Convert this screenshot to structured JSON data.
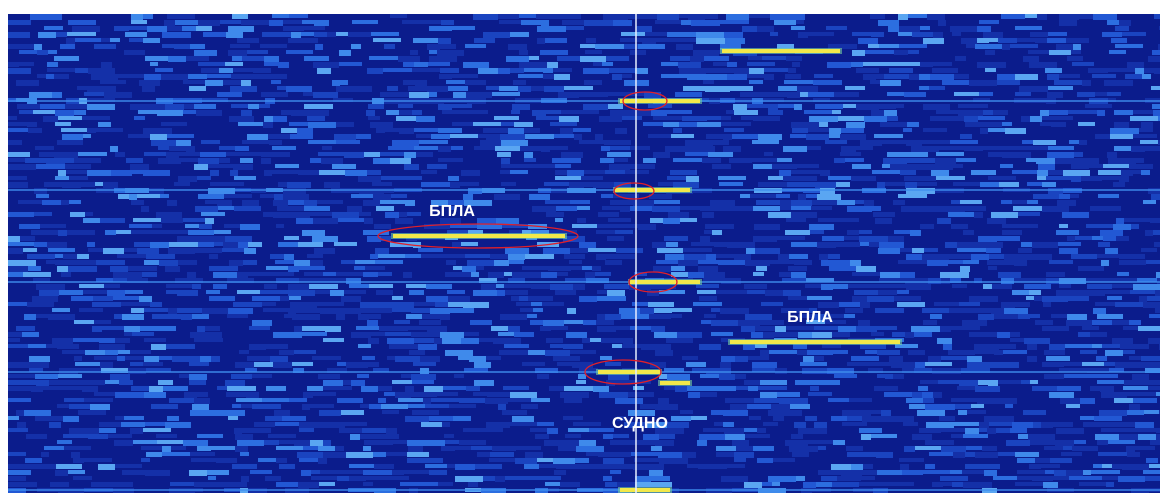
{
  "annotations": [
    "БПЛА",
    "БПЛА",
    "СУДНО"
  ]
}
